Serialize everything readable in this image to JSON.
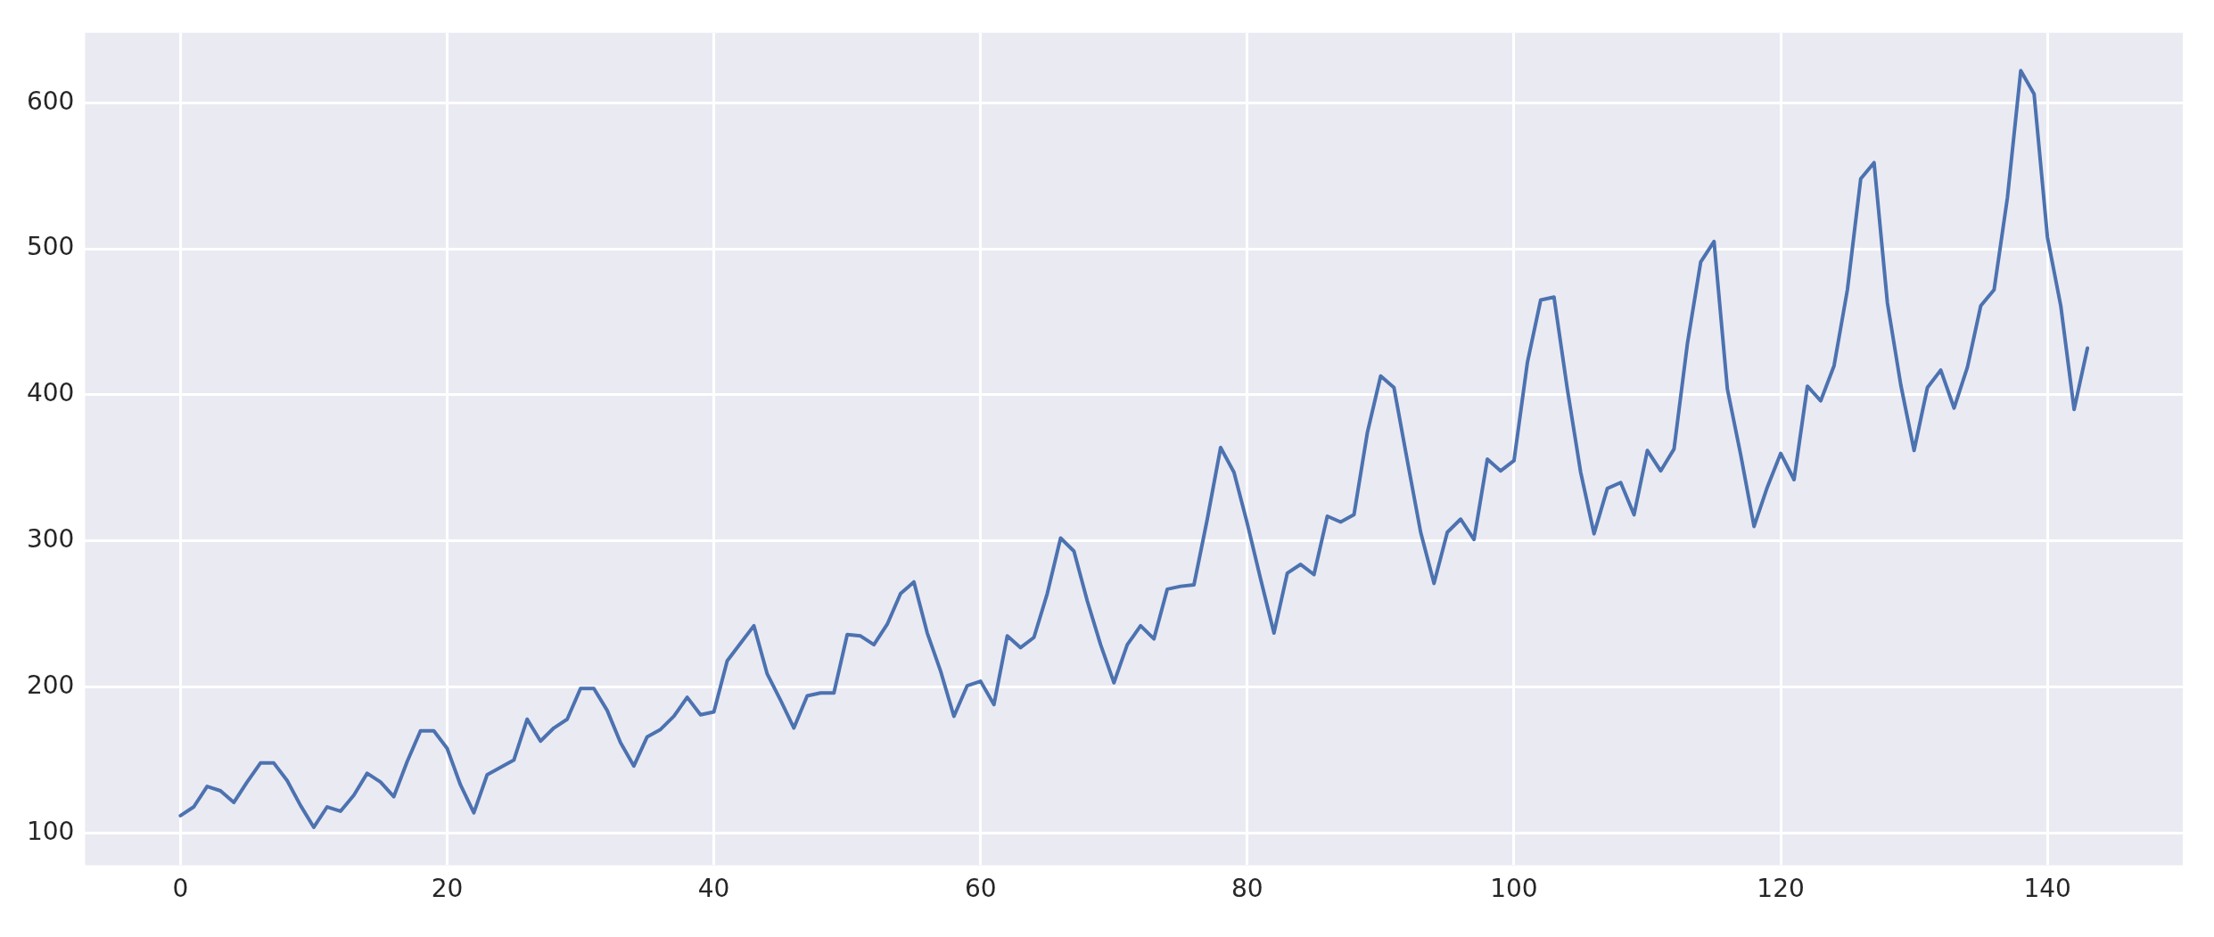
{
  "chart_data": {
    "type": "line",
    "x": [
      0,
      1,
      2,
      3,
      4,
      5,
      6,
      7,
      8,
      9,
      10,
      11,
      12,
      13,
      14,
      15,
      16,
      17,
      18,
      19,
      20,
      21,
      22,
      23,
      24,
      25,
      26,
      27,
      28,
      29,
      30,
      31,
      32,
      33,
      34,
      35,
      36,
      37,
      38,
      39,
      40,
      41,
      42,
      43,
      44,
      45,
      46,
      47,
      48,
      49,
      50,
      51,
      52,
      53,
      54,
      55,
      56,
      57,
      58,
      59,
      60,
      61,
      62,
      63,
      64,
      65,
      66,
      67,
      68,
      69,
      70,
      71,
      72,
      73,
      74,
      75,
      76,
      77,
      78,
      79,
      80,
      81,
      82,
      83,
      84,
      85,
      86,
      87,
      88,
      89,
      90,
      91,
      92,
      93,
      94,
      95,
      96,
      97,
      98,
      99,
      100,
      101,
      102,
      103,
      104,
      105,
      106,
      107,
      108,
      109,
      110,
      111,
      112,
      113,
      114,
      115,
      116,
      117,
      118,
      119,
      120,
      121,
      122,
      123,
      124,
      125,
      126,
      127,
      128,
      129,
      130,
      131,
      132,
      133,
      134,
      135,
      136,
      137,
      138,
      139,
      140,
      141,
      142,
      143
    ],
    "series": [
      {
        "color": "#4c72b0",
        "values": [
          112,
          118,
          132,
          129,
          121,
          135,
          148,
          148,
          136,
          119,
          104,
          118,
          115,
          126,
          141,
          135,
          125,
          149,
          170,
          170,
          158,
          133,
          114,
          140,
          145,
          150,
          178,
          163,
          172,
          178,
          199,
          199,
          184,
          162,
          146,
          166,
          171,
          180,
          193,
          181,
          183,
          218,
          230,
          242,
          209,
          191,
          172,
          194,
          196,
          196,
          236,
          235,
          229,
          243,
          264,
          272,
          237,
          211,
          180,
          201,
          204,
          188,
          235,
          227,
          234,
          264,
          302,
          293,
          259,
          229,
          203,
          229,
          242,
          233,
          267,
          269,
          270,
          315,
          364,
          347,
          312,
          274,
          237,
          278,
          284,
          277,
          317,
          313,
          318,
          374,
          413,
          405,
          355,
          306,
          271,
          306,
          315,
          301,
          356,
          348,
          355,
          422,
          465,
          467,
          404,
          347,
          305,
          336,
          340,
          318,
          362,
          348,
          363,
          435,
          491,
          505,
          404,
          359,
          310,
          337,
          360,
          342,
          406,
          396,
          420,
          472,
          548,
          559,
          463,
          407,
          362,
          405,
          417,
          391,
          419,
          461,
          472,
          535,
          622,
          606,
          508,
          461,
          390,
          432
        ]
      }
    ],
    "xlim": [
      -7.15,
      150.15
    ],
    "xticks": [
      0,
      20,
      40,
      60,
      80,
      100,
      120,
      140
    ],
    "ylim": [
      78.1,
      647.9
    ],
    "yticks": [
      100,
      200,
      300,
      400,
      500,
      600
    ],
    "grid": true,
    "legend": false,
    "marker": "none",
    "line_style": "solid"
  }
}
